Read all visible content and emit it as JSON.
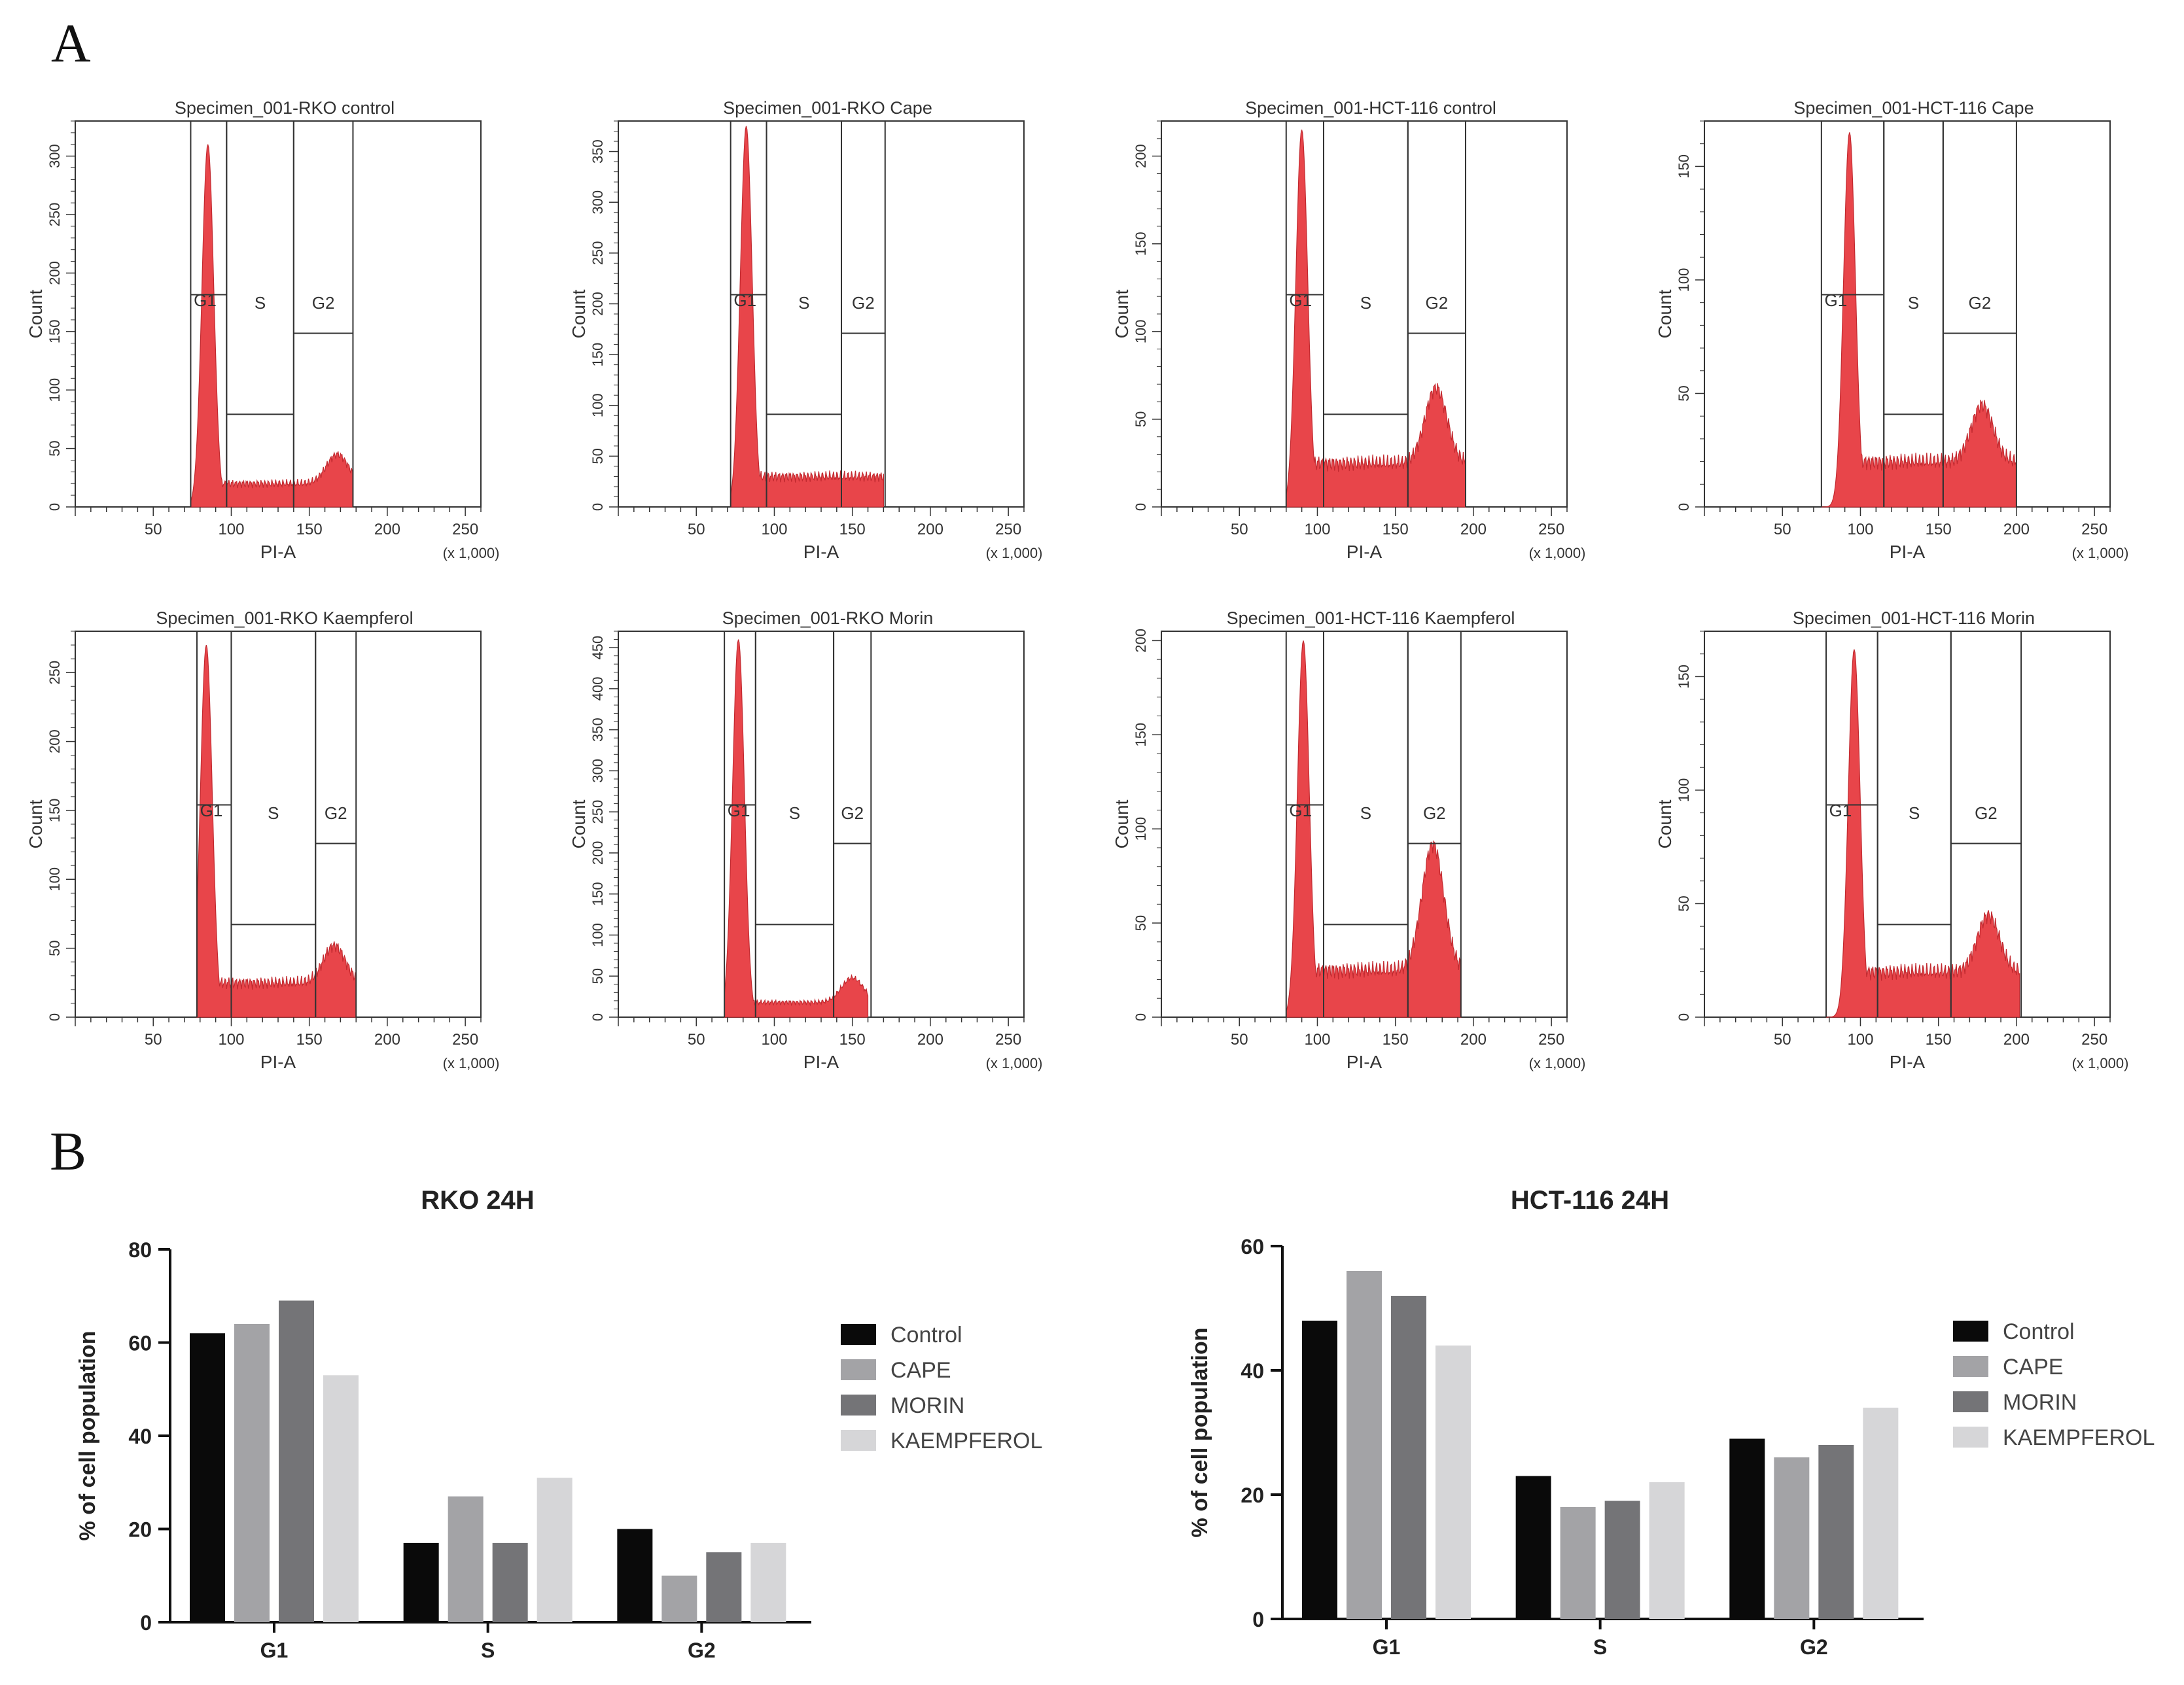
{
  "panels": {
    "a_label": "A",
    "b_label": "B"
  },
  "histogram_common": {
    "x_axis_label": "PI-A",
    "y_axis_label": "Count",
    "x_scale_note": "(x 1,000)",
    "x_ticks": [
      "50",
      "100",
      "150",
      "200",
      "250"
    ],
    "gate_labels": [
      "G1",
      "S",
      "G2"
    ]
  },
  "chart_data": [
    {
      "type": "area",
      "title": "Specimen_001-RKO control",
      "xlabel": "PI-A",
      "ylabel": "Count",
      "xlim": [
        0,
        260
      ],
      "ylim": [
        0,
        330
      ],
      "y_ticks": [
        0,
        50,
        100,
        150,
        200,
        250,
        300
      ],
      "peaks": {
        "g1_position": 85,
        "g1_height": 310,
        "s_level": 20,
        "g2_position": 168,
        "g2_height": 45,
        "end": 178
      },
      "gates": {
        "g1": [
          74,
          97
        ],
        "s": [
          97,
          140
        ],
        "g2": [
          140,
          178
        ]
      }
    },
    {
      "type": "area",
      "title": "Specimen_001-RKO Cape",
      "xlabel": "PI-A",
      "ylabel": "Count",
      "xlim": [
        0,
        260
      ],
      "ylim": [
        0,
        380
      ],
      "y_ticks": [
        0,
        50,
        100,
        150,
        200,
        250,
        300,
        350
      ],
      "peaks": {
        "g1_position": 82,
        "g1_height": 375,
        "s_level": 30,
        "g2_position": 155,
        "g2_height": 18,
        "end": 170
      },
      "gates": {
        "g1": [
          72,
          95
        ],
        "s": [
          95,
          143
        ],
        "g2": [
          143,
          171
        ]
      }
    },
    {
      "type": "area",
      "title": "Specimen_001-HCT-116 control",
      "xlabel": "PI-A",
      "ylabel": "Count",
      "xlim": [
        0,
        260
      ],
      "ylim": [
        0,
        220
      ],
      "y_ticks": [
        0,
        50,
        100,
        150,
        200
      ],
      "peaks": {
        "g1_position": 90,
        "g1_height": 215,
        "s_level": 25,
        "g2_position": 176,
        "g2_height": 68,
        "end": 195
      },
      "gates": {
        "g1": [
          80,
          104
        ],
        "s": [
          104,
          158
        ],
        "g2": [
          158,
          195
        ]
      }
    },
    {
      "type": "area",
      "title": "Specimen_001-HCT-116 Cape",
      "xlabel": "PI-A",
      "ylabel": "Count",
      "xlim": [
        0,
        260
      ],
      "ylim": [
        0,
        170
      ],
      "y_ticks": [
        0,
        50,
        100,
        150
      ],
      "peaks": {
        "g1_position": 93,
        "g1_height": 165,
        "s_level": 20,
        "g2_position": 178,
        "g2_height": 45,
        "end": 200
      },
      "gates": {
        "g1": [
          75,
          115
        ],
        "s": [
          115,
          153
        ],
        "g2": [
          153,
          200
        ]
      }
    },
    {
      "type": "area",
      "title": "Specimen_001-RKO Kaempferol",
      "xlabel": "PI-A",
      "ylabel": "Count",
      "xlim": [
        0,
        260
      ],
      "ylim": [
        0,
        280
      ],
      "y_ticks": [
        0,
        50,
        100,
        150,
        200,
        250
      ],
      "peaks": {
        "g1_position": 84,
        "g1_height": 270,
        "s_level": 25,
        "g2_position": 166,
        "g2_height": 52,
        "end": 180
      },
      "gates": {
        "g1": [
          78,
          100
        ],
        "s": [
          100,
          154
        ],
        "g2": [
          154,
          180
        ]
      }
    },
    {
      "type": "area",
      "title": "Specimen_001-RKO Morin",
      "xlabel": "PI-A",
      "ylabel": "Count",
      "xlim": [
        0,
        260
      ],
      "ylim": [
        0,
        470
      ],
      "y_ticks": [
        0,
        50,
        100,
        150,
        200,
        250,
        300,
        350,
        400,
        450
      ],
      "peaks": {
        "g1_position": 77,
        "g1_height": 460,
        "s_level": 18,
        "g2_position": 150,
        "g2_height": 48,
        "end": 160
      },
      "gates": {
        "g1": [
          68,
          88
        ],
        "s": [
          88,
          138
        ],
        "g2": [
          138,
          162
        ]
      }
    },
    {
      "type": "area",
      "title": "Specimen_001-HCT-116 Kaempferol",
      "xlabel": "PI-A",
      "ylabel": "Count",
      "xlim": [
        0,
        260
      ],
      "ylim": [
        0,
        205
      ],
      "y_ticks": [
        0,
        50,
        100,
        150,
        200
      ],
      "peaks": {
        "g1_position": 91,
        "g1_height": 200,
        "s_level": 25,
        "g2_position": 174,
        "g2_height": 92,
        "end": 192
      },
      "gates": {
        "g1": [
          80,
          104
        ],
        "s": [
          104,
          158
        ],
        "g2": [
          158,
          192
        ]
      }
    },
    {
      "type": "area",
      "title": "Specimen_001-HCT-116 Morin",
      "xlabel": "PI-A",
      "ylabel": "Count",
      "xlim": [
        0,
        260
      ],
      "ylim": [
        0,
        170
      ],
      "y_ticks": [
        0,
        50,
        100,
        150
      ],
      "peaks": {
        "g1_position": 96,
        "g1_height": 162,
        "s_level": 20,
        "g2_position": 182,
        "g2_height": 45,
        "end": 202
      },
      "gates": {
        "g1": [
          78,
          111
        ],
        "s": [
          111,
          158
        ],
        "g2": [
          158,
          203
        ]
      }
    },
    {
      "type": "bar",
      "title": "RKO 24H",
      "xlabel": "",
      "ylabel": "% of cell population",
      "categories": [
        "G1",
        "S",
        "G2"
      ],
      "series": [
        {
          "name": "Control",
          "values": [
            62,
            17,
            20
          ]
        },
        {
          "name": "CAPE",
          "values": [
            64,
            27,
            10
          ]
        },
        {
          "name": "MORIN",
          "values": [
            69,
            17,
            15
          ]
        },
        {
          "name": "KAEMPFEROL",
          "values": [
            53,
            31,
            17
          ]
        }
      ],
      "ylim": [
        0,
        80
      ],
      "y_ticks": [
        0,
        20,
        40,
        60,
        80
      ]
    },
    {
      "type": "bar",
      "title": "HCT-116 24H",
      "xlabel": "",
      "ylabel": "% of cell population",
      "categories": [
        "G1",
        "S",
        "G2"
      ],
      "series": [
        {
          "name": "Control",
          "values": [
            48,
            23,
            29
          ]
        },
        {
          "name": "CAPE",
          "values": [
            56,
            18,
            26
          ]
        },
        {
          "name": "MORIN",
          "values": [
            52,
            19,
            28
          ]
        },
        {
          "name": "KAEMPFEROL",
          "values": [
            44,
            22,
            34
          ]
        }
      ],
      "ylim": [
        0,
        60
      ],
      "y_ticks": [
        0,
        20,
        40,
        60
      ]
    }
  ],
  "colors": {
    "histogram_fill": "#e8454a",
    "histogram_fill_light": "#f26a6e",
    "frame": "#333333",
    "series": [
      "#0a0a0a",
      "#a3a3a6",
      "#747477",
      "#d6d6d8"
    ]
  }
}
